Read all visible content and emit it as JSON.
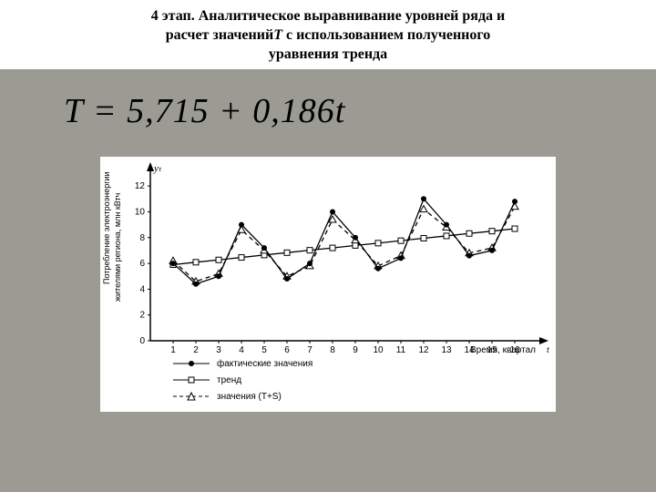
{
  "header": {
    "line1": "4 этап. Аналитическое выравнивание уровней ряда и",
    "line2_a": "расчет значений",
    "line2_b": "T",
    "line2_c": "с использованием полученного",
    "line3": "уравнения тренда"
  },
  "equation": {
    "text": "T = 5,715 + 0,186t"
  },
  "chart": {
    "type": "line",
    "background_color": "#ffffff",
    "axis_color": "#000000",
    "yaxis_label_1": "Потребление электроэнергии",
    "yaxis_label_2": "жителями региона, млн кВтч",
    "xaxis_label": "Время, квартал",
    "yt_label": "yₜ",
    "xticks": [
      1,
      2,
      3,
      4,
      5,
      6,
      7,
      8,
      9,
      10,
      11,
      12,
      13,
      14,
      15,
      16
    ],
    "yticks": [
      0,
      2,
      4,
      6,
      8,
      10,
      12
    ],
    "ylim": [
      0,
      13
    ],
    "xlim": [
      0,
      17
    ],
    "tick_fontsize": 10,
    "series": {
      "actual": {
        "label": "фактические значения",
        "color": "#000000",
        "marker": "filled-circle",
        "line_style": "solid",
        "values": [
          6.0,
          4.4,
          5.0,
          9.0,
          7.2,
          4.8,
          6.0,
          10.0,
          8.0,
          5.6,
          6.4,
          11.0,
          9.0,
          6.6,
          7.0,
          10.8
        ]
      },
      "trend": {
        "label": "тренд",
        "color": "#000000",
        "marker": "open-square",
        "line_style": "solid",
        "values": [
          5.9,
          6.09,
          6.27,
          6.46,
          6.65,
          6.83,
          7.02,
          7.2,
          7.39,
          7.57,
          7.76,
          7.95,
          8.13,
          8.32,
          8.5,
          8.69
        ]
      },
      "ts": {
        "label": "значения (T+S)",
        "color": "#000000",
        "marker": "open-triangle",
        "line_style": "dashed",
        "values": [
          6.2,
          4.6,
          5.2,
          8.6,
          7.0,
          5.0,
          5.8,
          9.4,
          7.8,
          5.8,
          6.6,
          10.2,
          8.8,
          6.8,
          7.2,
          10.4
        ]
      }
    },
    "legend": {
      "position": "bottom-left",
      "fontsize": 10
    }
  },
  "page_background": "#9b9b94"
}
